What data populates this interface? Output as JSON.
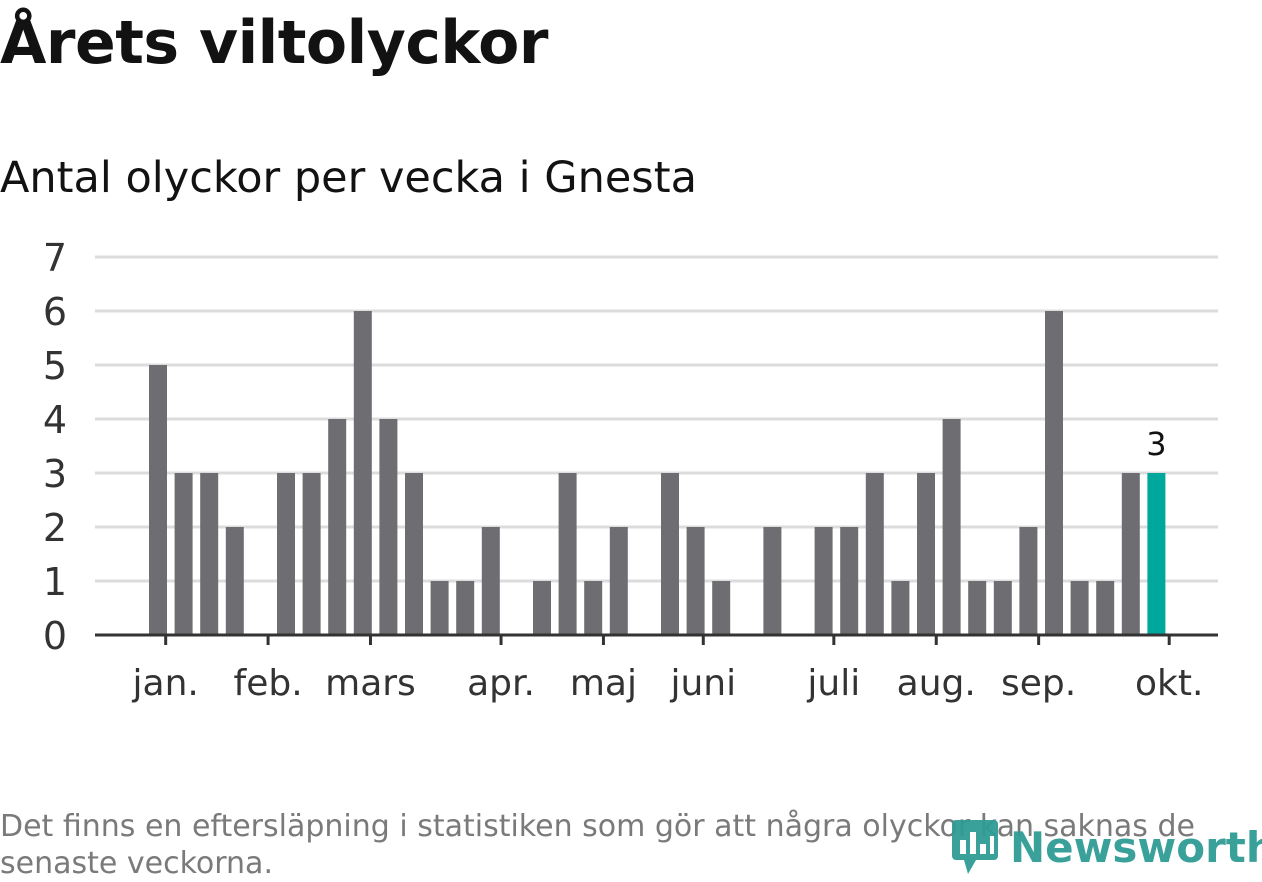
{
  "title": "Årets viltolyckor",
  "subtitle": "Antal olyckor per vecka i Gnesta",
  "footnote": "Det finns en eftersläpning i statistiken som gör att några olyckor kan saknas de senaste veckorna.",
  "logo": {
    "text": "Newsworthy",
    "icon": "newsworthy-logo-icon"
  },
  "colors": {
    "bar": "#6e6d72",
    "highlight": "#00a79d",
    "grid": "#dcdcdc",
    "axis": "#333333",
    "text": "#333333"
  },
  "chart_data": {
    "type": "bar",
    "title": "Antal olyckor per vecka i Gnesta",
    "ylim": [
      0,
      7
    ],
    "yticks": [
      0,
      1,
      2,
      3,
      4,
      5,
      6,
      7
    ],
    "weeks": [
      1,
      2,
      3,
      4,
      5,
      6,
      7,
      8,
      9,
      10,
      11,
      12,
      13,
      14,
      15,
      16,
      17,
      18,
      19,
      20,
      21,
      22,
      23,
      24,
      25,
      26,
      27,
      28,
      29,
      30,
      31,
      32,
      33,
      34,
      35,
      36,
      37,
      38,
      39,
      40,
      41,
      42
    ],
    "values": [
      0,
      0,
      5,
      3,
      3,
      2,
      0,
      3,
      3,
      4,
      6,
      4,
      3,
      1,
      1,
      2,
      0,
      1,
      3,
      1,
      2,
      0,
      3,
      2,
      1,
      0,
      2,
      0,
      2,
      2,
      3,
      1,
      3,
      4,
      1,
      1,
      2,
      6,
      1,
      1,
      3,
      3
    ],
    "highlight_index": 41,
    "highlight_label": "3",
    "month_labels": [
      {
        "label": "jan.",
        "week": 3.3
      },
      {
        "label": "feb.",
        "week": 7.3
      },
      {
        "label": "mars",
        "week": 11.3
      },
      {
        "label": "apr.",
        "week": 16.4
      },
      {
        "label": "maj",
        "week": 20.4
      },
      {
        "label": "juni",
        "week": 24.3
      },
      {
        "label": "juli",
        "week": 29.4
      },
      {
        "label": "aug.",
        "week": 33.4
      },
      {
        "label": "sep.",
        "week": 37.4
      },
      {
        "label": "okt.",
        "week": 42.5
      }
    ]
  }
}
